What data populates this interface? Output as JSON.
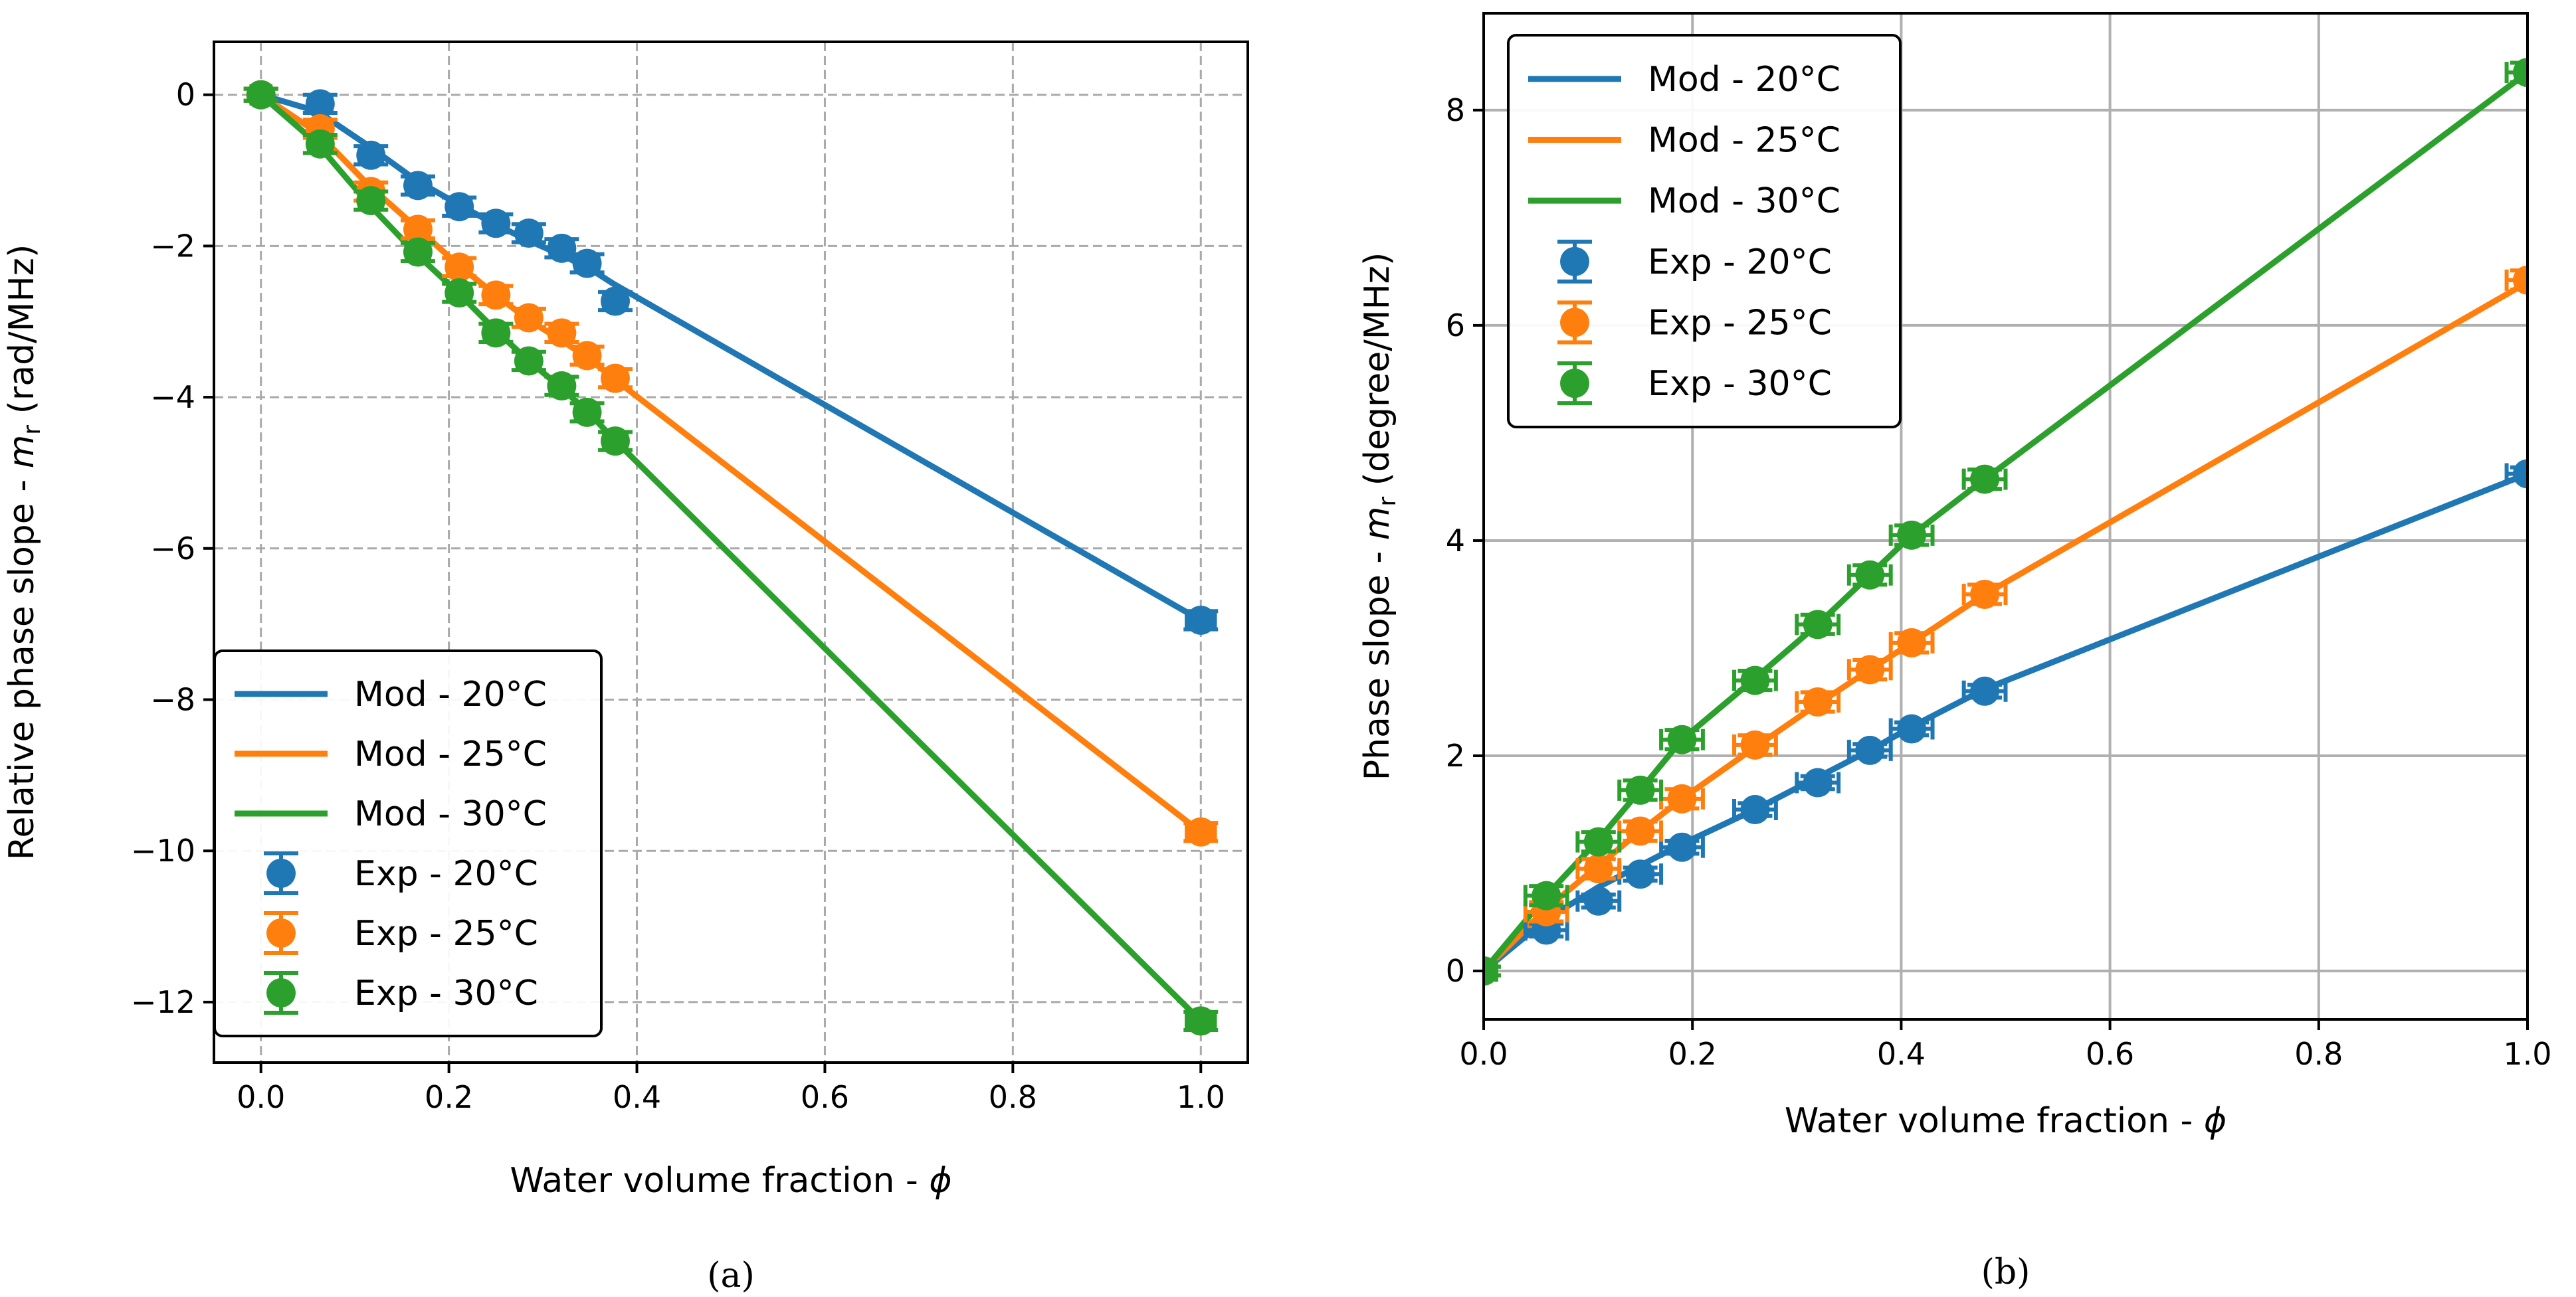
{
  "colors": {
    "20": "#1f77b4",
    "25": "#ff7f0e",
    "30": "#2ca02c"
  },
  "chart_data": [
    {
      "type": "line",
      "caption": "(a)",
      "xlabel": "Water volume fraction - ϕ",
      "ylabel_parts": [
        "Relative phase slope - ",
        "m",
        "r",
        " (rad/MHz)"
      ],
      "xlim": [
        -0.05,
        1.05
      ],
      "ylim": [
        -12.8,
        0.7
      ],
      "xticks": [
        0.0,
        0.2,
        0.4,
        0.6,
        0.8,
        1.0
      ],
      "xtick_labels": [
        "0.0",
        "0.2",
        "0.4",
        "0.6",
        "0.8",
        "1.0"
      ],
      "yticks": [
        0,
        -2,
        -4,
        -6,
        -8,
        -10,
        -12
      ],
      "ytick_labels": [
        "0",
        "−2",
        "−4",
        "−6",
        "−8",
        "−10",
        "−12"
      ],
      "grid": "dashed",
      "legend_position": "lower-left",
      "series": [
        {
          "name": "Mod - 20°C",
          "kind": "line",
          "color_key": "20",
          "x": [
            0,
            0.06,
            0.115,
            0.165,
            0.21,
            0.25,
            0.285,
            0.32,
            0.35,
            0.375,
            1.0
          ],
          "y": [
            0,
            -0.22,
            -0.68,
            -1.13,
            -1.45,
            -1.72,
            -1.93,
            -2.12,
            -2.3,
            -2.5,
            -6.95
          ]
        },
        {
          "name": "Mod - 25°C",
          "kind": "line",
          "color_key": "25",
          "x": [
            0,
            0.06,
            0.115,
            0.165,
            0.21,
            0.25,
            0.285,
            0.32,
            0.35,
            0.375,
            1.0
          ],
          "y": [
            0,
            -0.5,
            -1.2,
            -1.75,
            -2.25,
            -2.65,
            -2.98,
            -3.25,
            -3.5,
            -3.75,
            -9.75
          ]
        },
        {
          "name": "Mod - 30°C",
          "kind": "line",
          "color_key": "30",
          "x": [
            0,
            0.06,
            0.115,
            0.165,
            0.21,
            0.25,
            0.285,
            0.32,
            0.35,
            0.375,
            1.0
          ],
          "y": [
            0,
            -0.65,
            -1.45,
            -2.1,
            -2.62,
            -3.12,
            -3.52,
            -3.88,
            -4.22,
            -4.55,
            -12.25
          ]
        },
        {
          "name": "Exp - 20°C",
          "kind": "errorbar",
          "color_key": "20",
          "x": [
            0,
            0.063,
            0.117,
            0.167,
            0.211,
            0.25,
            0.285,
            0.32,
            0.347,
            0.377,
            1.0
          ],
          "y": [
            0,
            -0.12,
            -0.8,
            -1.2,
            -1.48,
            -1.7,
            -1.83,
            -2.03,
            -2.23,
            -2.73,
            -6.95
          ],
          "xerr": [
            0.01,
            0.012,
            0.012,
            0.012,
            0.012,
            0.012,
            0.012,
            0.012,
            0.012,
            0.012,
            0.015
          ],
          "yerr": [
            0.08,
            0.12,
            0.12,
            0.12,
            0.12,
            0.12,
            0.12,
            0.12,
            0.12,
            0.12,
            0.12
          ]
        },
        {
          "name": "Exp - 25°C",
          "kind": "errorbar",
          "color_key": "25",
          "x": [
            0,
            0.063,
            0.117,
            0.167,
            0.211,
            0.25,
            0.285,
            0.32,
            0.347,
            0.377,
            1.0
          ],
          "y": [
            0,
            -0.45,
            -1.28,
            -1.78,
            -2.28,
            -2.65,
            -2.95,
            -3.15,
            -3.45,
            -3.75,
            -9.75
          ],
          "xerr": [
            0.01,
            0.012,
            0.012,
            0.012,
            0.012,
            0.012,
            0.012,
            0.012,
            0.012,
            0.012,
            0.015
          ],
          "yerr": [
            0.08,
            0.12,
            0.12,
            0.12,
            0.12,
            0.12,
            0.12,
            0.12,
            0.12,
            0.12,
            0.12
          ]
        },
        {
          "name": "Exp - 30°C",
          "kind": "errorbar",
          "color_key": "30",
          "x": [
            0,
            0.063,
            0.117,
            0.167,
            0.211,
            0.25,
            0.285,
            0.32,
            0.347,
            0.377,
            1.0
          ],
          "y": [
            0,
            -0.65,
            -1.4,
            -2.08,
            -2.62,
            -3.15,
            -3.52,
            -3.85,
            -4.2,
            -4.58,
            -12.25
          ],
          "xerr": [
            0.01,
            0.012,
            0.012,
            0.012,
            0.012,
            0.012,
            0.012,
            0.012,
            0.012,
            0.012,
            0.015
          ],
          "yerr": [
            0.08,
            0.12,
            0.12,
            0.12,
            0.12,
            0.12,
            0.12,
            0.12,
            0.12,
            0.12,
            0.12
          ]
        }
      ]
    },
    {
      "type": "line",
      "caption": "(b)",
      "xlabel": "Water volume fraction - ϕ",
      "ylabel_parts": [
        "Phase slope - ",
        "m",
        "r",
        " (degree/MHz)"
      ],
      "xlim": [
        0.0,
        1.0
      ],
      "ylim": [
        -0.45,
        8.9
      ],
      "xticks": [
        0.0,
        0.2,
        0.4,
        0.6,
        0.8,
        1.0
      ],
      "xtick_labels": [
        "0.0",
        "0.2",
        "0.4",
        "0.6",
        "0.8",
        "1.0"
      ],
      "yticks": [
        0,
        2,
        4,
        6,
        8
      ],
      "ytick_labels": [
        "0",
        "2",
        "4",
        "6",
        "8"
      ],
      "grid": "solid",
      "legend_position": "upper-left",
      "series": [
        {
          "name": "Mod - 20°C",
          "kind": "line",
          "color_key": "20",
          "x": [
            0,
            0.06,
            0.11,
            0.15,
            0.19,
            0.26,
            0.32,
            0.37,
            0.41,
            0.48,
            1.0
          ],
          "y": [
            0,
            0.48,
            0.78,
            0.98,
            1.18,
            1.5,
            1.8,
            2.05,
            2.27,
            2.62,
            4.62
          ]
        },
        {
          "name": "Mod - 25°C",
          "kind": "line",
          "color_key": "25",
          "x": [
            0,
            0.06,
            0.11,
            0.15,
            0.19,
            0.26,
            0.32,
            0.37,
            0.41,
            0.48,
            1.0
          ],
          "y": [
            0,
            0.58,
            0.98,
            1.3,
            1.6,
            2.08,
            2.48,
            2.8,
            3.05,
            3.5,
            6.4
          ]
        },
        {
          "name": "Mod - 30°C",
          "kind": "line",
          "color_key": "30",
          "x": [
            0,
            0.06,
            0.11,
            0.15,
            0.19,
            0.26,
            0.32,
            0.37,
            0.41,
            0.48,
            1.0
          ],
          "y": [
            0,
            0.7,
            1.22,
            1.68,
            2.15,
            2.72,
            3.22,
            3.68,
            4.05,
            4.57,
            8.35
          ]
        },
        {
          "name": "Exp - 20°C",
          "kind": "errorbar",
          "color_key": "20",
          "x": [
            0,
            0.06,
            0.11,
            0.15,
            0.19,
            0.26,
            0.32,
            0.37,
            0.41,
            0.48,
            1.0
          ],
          "y": [
            0,
            0.38,
            0.65,
            0.9,
            1.15,
            1.5,
            1.75,
            2.05,
            2.25,
            2.6,
            4.62
          ],
          "xerr": [
            0.012,
            0.02,
            0.02,
            0.02,
            0.02,
            0.02,
            0.02,
            0.02,
            0.02,
            0.02,
            0.02
          ],
          "yerr": [
            0.04,
            0.06,
            0.06,
            0.06,
            0.06,
            0.06,
            0.06,
            0.06,
            0.06,
            0.06,
            0.06
          ]
        },
        {
          "name": "Exp - 25°C",
          "kind": "errorbar",
          "color_key": "25",
          "x": [
            0,
            0.06,
            0.11,
            0.15,
            0.19,
            0.26,
            0.32,
            0.37,
            0.41,
            0.48,
            1.0
          ],
          "y": [
            0,
            0.55,
            0.95,
            1.3,
            1.6,
            2.1,
            2.5,
            2.8,
            3.05,
            3.5,
            6.42
          ],
          "xerr": [
            0.012,
            0.02,
            0.02,
            0.02,
            0.02,
            0.02,
            0.02,
            0.02,
            0.02,
            0.02,
            0.02
          ],
          "yerr": [
            0.04,
            0.09,
            0.09,
            0.09,
            0.09,
            0.09,
            0.09,
            0.09,
            0.09,
            0.09,
            0.09
          ]
        },
        {
          "name": "Exp - 30°C",
          "kind": "errorbar",
          "color_key": "30",
          "x": [
            0,
            0.06,
            0.11,
            0.15,
            0.19,
            0.26,
            0.32,
            0.37,
            0.41,
            0.48,
            1.0
          ],
          "y": [
            0,
            0.7,
            1.2,
            1.68,
            2.15,
            2.7,
            3.22,
            3.68,
            4.05,
            4.57,
            8.35
          ],
          "xerr": [
            0.012,
            0.02,
            0.02,
            0.02,
            0.02,
            0.02,
            0.02,
            0.02,
            0.02,
            0.02,
            0.02
          ],
          "yerr": [
            0.04,
            0.09,
            0.09,
            0.09,
            0.09,
            0.09,
            0.09,
            0.09,
            0.09,
            0.09,
            0.09
          ]
        }
      ]
    }
  ]
}
